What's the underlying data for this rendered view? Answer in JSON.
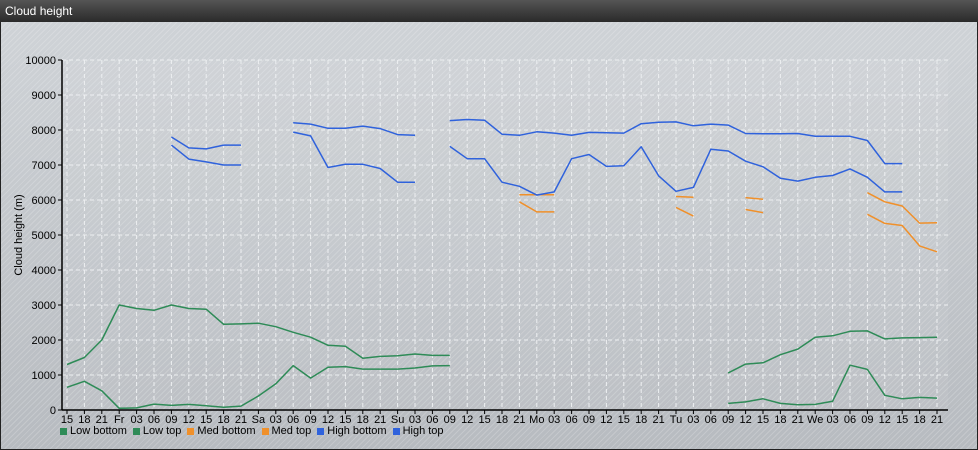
{
  "window": {
    "title": "Cloud height"
  },
  "chart_data": {
    "type": "line",
    "title": "",
    "ylabel": "Cloud height (m)",
    "xlabel": "",
    "ylim": [
      0,
      10000
    ],
    "yticks": [
      0,
      1000,
      2000,
      3000,
      4000,
      5000,
      6000,
      7000,
      8000,
      9000,
      10000
    ],
    "grid": true,
    "legend_position": "bottom-left",
    "categories": [
      "15",
      "18",
      "21",
      "Fr",
      "03",
      "06",
      "09",
      "12",
      "15",
      "18",
      "21",
      "Sa",
      "03",
      "06",
      "09",
      "12",
      "15",
      "18",
      "21",
      "Su",
      "03",
      "06",
      "09",
      "12",
      "15",
      "18",
      "21",
      "Mo",
      "03",
      "06",
      "09",
      "12",
      "15",
      "18",
      "21",
      "Tu",
      "03",
      "06",
      "09",
      "12",
      "15",
      "18",
      "21",
      "We",
      "03",
      "06",
      "09",
      "12",
      "15",
      "18",
      "21"
    ],
    "series": [
      {
        "name": "Low bottom",
        "color": "#2e8b57",
        "values": [
          650,
          820,
          550,
          50,
          60,
          170,
          130,
          160,
          120,
          80,
          110,
          400,
          750,
          1270,
          910,
          1220,
          1240,
          1170,
          1170,
          1170,
          1200,
          1260,
          1270,
          null,
          null,
          null,
          null,
          null,
          null,
          null,
          null,
          null,
          null,
          null,
          null,
          null,
          null,
          null,
          190,
          230,
          320,
          190,
          150,
          160,
          250,
          1280,
          1160,
          420,
          320,
          360,
          340
        ]
      },
      {
        "name": "Low top",
        "color": "#2e8b57",
        "values": [
          1300,
          1500,
          2000,
          3000,
          2900,
          2850,
          3000,
          2900,
          2880,
          2450,
          2460,
          2480,
          2380,
          2220,
          2080,
          1850,
          1820,
          1480,
          1530,
          1550,
          1600,
          1560,
          1560,
          null,
          null,
          null,
          null,
          null,
          null,
          null,
          null,
          null,
          null,
          null,
          null,
          null,
          null,
          null,
          1060,
          1310,
          1350,
          1580,
          1740,
          2080,
          2120,
          2250,
          2260,
          2030,
          2060,
          2070,
          2080
        ]
      },
      {
        "name": "Med bottom",
        "color": "#f0902a",
        "values": [
          null,
          null,
          null,
          null,
          null,
          null,
          null,
          null,
          null,
          null,
          null,
          null,
          null,
          null,
          null,
          null,
          null,
          null,
          null,
          null,
          null,
          null,
          null,
          null,
          null,
          null,
          5950,
          5660,
          5660,
          null,
          null,
          null,
          null,
          null,
          null,
          5790,
          5540,
          null,
          null,
          5730,
          5640,
          null,
          null,
          null,
          null,
          null,
          5590,
          5330,
          5270,
          4690,
          4520
        ]
      },
      {
        "name": "Med top",
        "color": "#f0902a",
        "values": [
          null,
          null,
          null,
          null,
          null,
          null,
          null,
          null,
          null,
          null,
          null,
          null,
          null,
          null,
          null,
          null,
          null,
          null,
          null,
          null,
          null,
          null,
          null,
          null,
          null,
          null,
          6150,
          6150,
          6150,
          null,
          null,
          null,
          null,
          null,
          null,
          6100,
          6080,
          null,
          null,
          6070,
          6020,
          null,
          null,
          null,
          null,
          null,
          6210,
          5950,
          5830,
          5340,
          5350
        ]
      },
      {
        "name": "High bottom",
        "color": "#2f62dc",
        "values": [
          null,
          null,
          null,
          null,
          null,
          null,
          7570,
          7170,
          7090,
          7000,
          7000,
          null,
          null,
          7940,
          7830,
          6930,
          7020,
          7020,
          6900,
          6510,
          6510,
          null,
          7530,
          7180,
          7180,
          6510,
          6390,
          6140,
          6230,
          7180,
          7300,
          6960,
          6980,
          7520,
          6690,
          6250,
          6360,
          7450,
          7400,
          7110,
          6950,
          6620,
          6540,
          6650,
          6700,
          6890,
          6650,
          6230,
          6230,
          null,
          null
        ]
      },
      {
        "name": "High top",
        "color": "#2f62dc",
        "values": [
          null,
          null,
          null,
          null,
          null,
          null,
          7800,
          7490,
          7460,
          7570,
          7570,
          null,
          null,
          8210,
          8170,
          8050,
          8050,
          8110,
          8040,
          7870,
          7850,
          null,
          8270,
          8300,
          8280,
          7880,
          7850,
          7950,
          7910,
          7850,
          7930,
          7920,
          7910,
          8180,
          8220,
          8230,
          8120,
          8170,
          8140,
          7900,
          7890,
          7890,
          7900,
          7820,
          7820,
          7820,
          7700,
          7040,
          7040,
          null,
          null
        ]
      }
    ]
  }
}
